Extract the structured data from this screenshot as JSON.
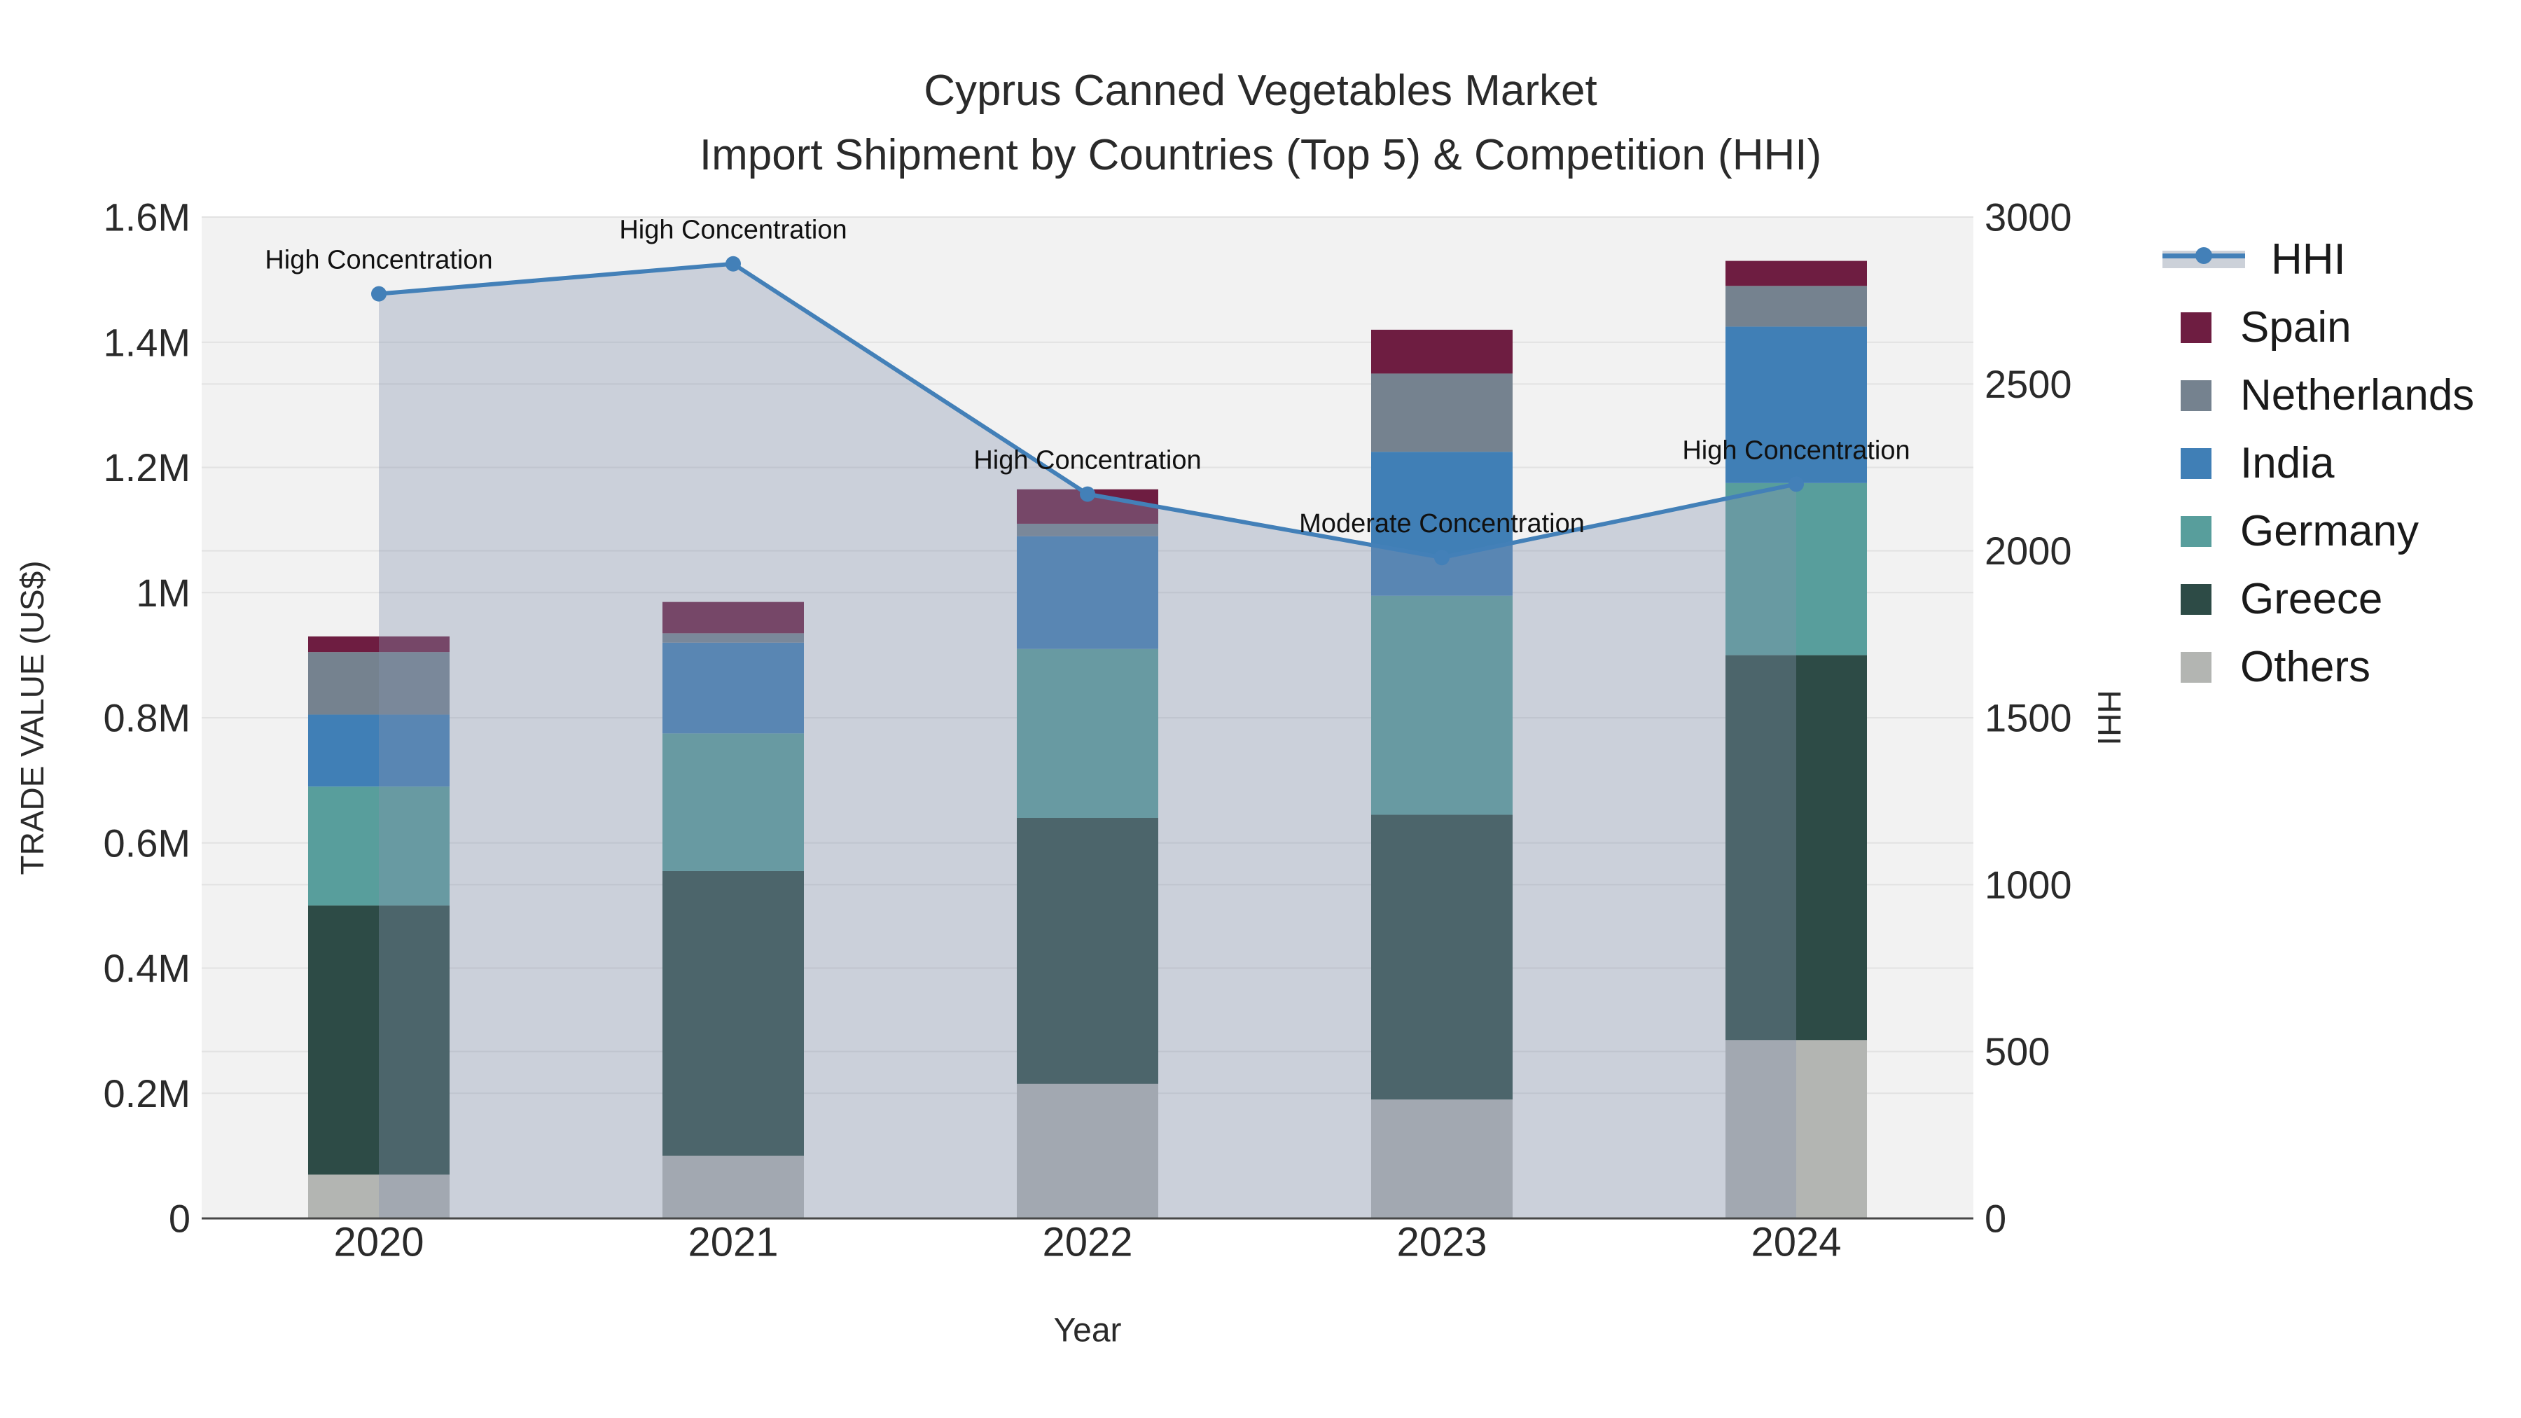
{
  "chart_data": {
    "type": "combo-stacked-bar-line",
    "title": "Cyprus Canned Vegetables Market",
    "subtitle": "Import Shipment by Countries (Top 5) & Competition (HHI)",
    "xlabel": "Year",
    "categories": [
      "2020",
      "2021",
      "2022",
      "2023",
      "2024"
    ],
    "y_left": {
      "label": "TRADE VALUE (US$)",
      "lim": [
        0,
        1600000
      ],
      "tick_values": [
        0,
        200000,
        400000,
        600000,
        800000,
        1000000,
        1200000,
        1400000,
        1600000
      ],
      "tick_labels": [
        "0",
        "0.2M",
        "0.4M",
        "0.6M",
        "0.8M",
        "1M",
        "1.2M",
        "1.4M",
        "1.6M"
      ]
    },
    "y_right": {
      "label": "HHI",
      "lim": [
        0,
        3000
      ],
      "tick_values": [
        0,
        500,
        1000,
        1500,
        2000,
        2500,
        3000
      ],
      "tick_labels": [
        "0",
        "500",
        "1000",
        "1500",
        "2000",
        "2500",
        "3000"
      ]
    },
    "series": [
      {
        "name": "Others",
        "color": "#b3b5b2",
        "values": [
          70000,
          100000,
          215000,
          190000,
          285000
        ]
      },
      {
        "name": "Greece",
        "color": "#2d4b46",
        "values": [
          430000,
          455000,
          425000,
          455000,
          615000
        ]
      },
      {
        "name": "Germany",
        "color": "#589e9c",
        "values": [
          190000,
          220000,
          270000,
          350000,
          275000
        ]
      },
      {
        "name": "India",
        "color": "#407fb6",
        "values": [
          115000,
          145000,
          180000,
          230000,
          250000
        ]
      },
      {
        "name": "Netherlands",
        "color": "#75828f",
        "values": [
          100000,
          15000,
          20000,
          125000,
          65000
        ]
      },
      {
        "name": "Spain",
        "color": "#6e1d41",
        "values": [
          25000,
          50000,
          55000,
          70000,
          40000
        ]
      }
    ],
    "bar_totals": [
      930000,
      985000,
      1165000,
      1420000,
      1530000
    ],
    "hhi": {
      "name": "HHI",
      "values": [
        2770,
        2860,
        2170,
        1980,
        2200
      ],
      "line_color": "#4380b8",
      "area_color": "#8593af",
      "area_opacity": 0.36
    },
    "annotations": [
      {
        "category": "2020",
        "text": "High Concentration"
      },
      {
        "category": "2021",
        "text": "High Concentration"
      },
      {
        "category": "2022",
        "text": "High Concentration"
      },
      {
        "category": "2023",
        "text": "Moderate Concentration"
      },
      {
        "category": "2024",
        "text": "High Concentration"
      }
    ],
    "legend": [
      {
        "label": "HHI",
        "type": "line",
        "color": "#4380b8"
      },
      {
        "label": "Spain",
        "type": "square",
        "color": "#6e1d41"
      },
      {
        "label": "Netherlands",
        "type": "square",
        "color": "#75828f"
      },
      {
        "label": "India",
        "type": "square",
        "color": "#407fb6"
      },
      {
        "label": "Germany",
        "type": "square",
        "color": "#589e9c"
      },
      {
        "label": "Greece",
        "type": "square",
        "color": "#2d4b46"
      },
      {
        "label": "Others",
        "type": "square",
        "color": "#b3b5b2"
      }
    ],
    "layout_colors": {
      "plot_background": "#f2f2f2",
      "gridline": "#e2e2e2",
      "axis_line": "#474747",
      "text": "#2a2a2a"
    },
    "legend_position": "right",
    "grid": true
  }
}
